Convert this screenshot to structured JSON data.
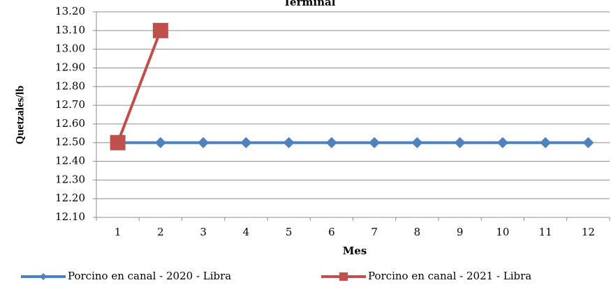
{
  "chart_data": {
    "type": "line",
    "title": "Terminal",
    "x_label": "Mes",
    "y_label": "Quetzales/lb",
    "categories": [
      "1",
      "2",
      "3",
      "4",
      "5",
      "6",
      "7",
      "8",
      "9",
      "10",
      "11",
      "12"
    ],
    "series": [
      {
        "name": "Porcino en canal - 2020 - Libra",
        "color": "#4f81bd",
        "marker": "diamond",
        "values": [
          12.5,
          12.5,
          12.5,
          12.5,
          12.5,
          12.5,
          12.5,
          12.5,
          12.5,
          12.5,
          12.5,
          12.5
        ]
      },
      {
        "name": "Porcino en canal - 2021 - Libra",
        "color": "#c0504d",
        "marker": "square",
        "values": [
          12.5,
          13.1,
          null,
          null,
          null,
          null,
          null,
          null,
          null,
          null,
          null,
          null
        ]
      }
    ],
    "ylim": [
      12.1,
      13.2
    ],
    "yticks": [
      {
        "value": 12.1,
        "label": "12.10"
      },
      {
        "value": 12.2,
        "label": "12.20"
      },
      {
        "value": 12.3,
        "label": "12.30"
      },
      {
        "value": 12.4,
        "label": "12.40"
      },
      {
        "value": 12.5,
        "label": "12.50"
      },
      {
        "value": 12.6,
        "label": "12.60"
      },
      {
        "value": 12.7,
        "label": "12.70"
      },
      {
        "value": 12.8,
        "label": "12.80"
      },
      {
        "value": 12.9,
        "label": "12.90"
      },
      {
        "value": 13.0,
        "label": "13.00"
      },
      {
        "value": 13.1,
        "label": "13.10"
      },
      {
        "value": 13.2,
        "label": "13.20"
      }
    ],
    "grid": true,
    "legend": "bottom"
  }
}
